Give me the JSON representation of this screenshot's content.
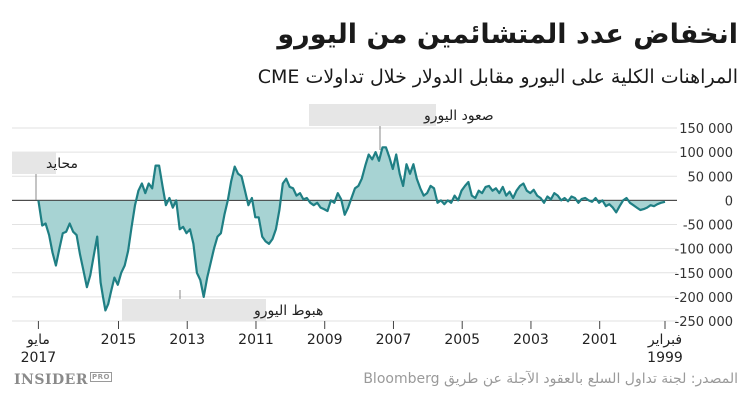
{
  "header": {
    "title": "انخفاض عدد المتشائمين من اليورو",
    "subtitle": "المراهنات الكلية على اليورو مقابل الدولار خلال تداولات CME"
  },
  "footer": {
    "logo_text": "INSIDER",
    "logo_badge": "PRO",
    "source": "المصدر: لجنة تداول السلع بالعقود الآجلة عن طريق Bloomberg"
  },
  "colors": {
    "line": "#1f7f84",
    "fill": "#a7d3d3",
    "grid": "#e2e2e2",
    "label_bg": "#e6e6e6"
  },
  "chart_data": {
    "type": "area",
    "x_direction": "right-to-left",
    "xlim": [
      1999.1,
      2017.4
    ],
    "ylim": [
      -250000,
      150000
    ],
    "y_ticks": [
      150000,
      100000,
      50000,
      0,
      -50000,
      -100000,
      -150000,
      -200000,
      -250000
    ],
    "y_tick_labels": [
      "150 000",
      "100 000",
      "50 000",
      "0",
      "-50 000",
      "-100 000",
      "-150 000",
      "-200 000",
      "-250 000"
    ],
    "x_ticks": [
      {
        "x": 2017.33,
        "label": "مايو",
        "label2": "2017"
      },
      {
        "x": 2015,
        "label": "2015"
      },
      {
        "x": 2013,
        "label": "2013"
      },
      {
        "x": 2011,
        "label": "2011"
      },
      {
        "x": 2009,
        "label": "2009"
      },
      {
        "x": 2007,
        "label": "2007"
      },
      {
        "x": 2005,
        "label": "2005"
      },
      {
        "x": 2003,
        "label": "2003"
      },
      {
        "x": 2001,
        "label": "2001"
      },
      {
        "x": 1999.1,
        "label": "فبراير",
        "label2": "1999"
      }
    ],
    "series": [
      {
        "points": [
          [
            2017.33,
            0
          ],
          [
            2017.22,
            -52000
          ],
          [
            2017.12,
            -48000
          ],
          [
            2017.02,
            -72000
          ],
          [
            2016.92,
            -108000
          ],
          [
            2016.82,
            -135000
          ],
          [
            2016.72,
            -100000
          ],
          [
            2016.62,
            -68000
          ],
          [
            2016.52,
            -65000
          ],
          [
            2016.42,
            -48000
          ],
          [
            2016.32,
            -65000
          ],
          [
            2016.22,
            -72000
          ],
          [
            2016.12,
            -112000
          ],
          [
            2016.02,
            -145000
          ],
          [
            2015.92,
            -180000
          ],
          [
            2015.82,
            -155000
          ],
          [
            2015.72,
            -115000
          ],
          [
            2015.62,
            -75000
          ],
          [
            2015.52,
            -170000
          ],
          [
            2015.45,
            -200000
          ],
          [
            2015.38,
            -228000
          ],
          [
            2015.3,
            -215000
          ],
          [
            2015.22,
            -190000
          ],
          [
            2015.12,
            -160000
          ],
          [
            2015.02,
            -175000
          ],
          [
            2014.92,
            -150000
          ],
          [
            2014.82,
            -135000
          ],
          [
            2014.72,
            -105000
          ],
          [
            2014.62,
            -55000
          ],
          [
            2014.52,
            -10000
          ],
          [
            2014.42,
            20000
          ],
          [
            2014.32,
            35000
          ],
          [
            2014.22,
            15000
          ],
          [
            2014.12,
            35000
          ],
          [
            2014.02,
            25000
          ],
          [
            2013.92,
            72000
          ],
          [
            2013.82,
            72000
          ],
          [
            2013.72,
            30000
          ],
          [
            2013.62,
            -10000
          ],
          [
            2013.52,
            5000
          ],
          [
            2013.42,
            -15000
          ],
          [
            2013.32,
            0
          ],
          [
            2013.22,
            -60000
          ],
          [
            2013.12,
            -55000
          ],
          [
            2013.02,
            -68000
          ],
          [
            2012.92,
            -60000
          ],
          [
            2012.82,
            -90000
          ],
          [
            2012.72,
            -150000
          ],
          [
            2012.62,
            -165000
          ],
          [
            2012.52,
            -200000
          ],
          [
            2012.42,
            -160000
          ],
          [
            2012.32,
            -130000
          ],
          [
            2012.22,
            -100000
          ],
          [
            2012.12,
            -75000
          ],
          [
            2012.02,
            -68000
          ],
          [
            2011.92,
            -30000
          ],
          [
            2011.82,
            0
          ],
          [
            2011.72,
            40000
          ],
          [
            2011.62,
            70000
          ],
          [
            2011.52,
            55000
          ],
          [
            2011.42,
            50000
          ],
          [
            2011.32,
            20000
          ],
          [
            2011.22,
            -10000
          ],
          [
            2011.12,
            5000
          ],
          [
            2011.02,
            -35000
          ],
          [
            2010.92,
            -35000
          ],
          [
            2010.82,
            -75000
          ],
          [
            2010.72,
            -85000
          ],
          [
            2010.62,
            -90000
          ],
          [
            2010.52,
            -80000
          ],
          [
            2010.42,
            -60000
          ],
          [
            2010.32,
            -20000
          ],
          [
            2010.22,
            35000
          ],
          [
            2010.12,
            45000
          ],
          [
            2010.02,
            28000
          ],
          [
            2009.92,
            25000
          ],
          [
            2009.82,
            10000
          ],
          [
            2009.72,
            15000
          ],
          [
            2009.62,
            2000
          ],
          [
            2009.52,
            5000
          ],
          [
            2009.42,
            -5000
          ],
          [
            2009.32,
            -10000
          ],
          [
            2009.22,
            -5000
          ],
          [
            2009.12,
            -15000
          ],
          [
            2009.02,
            -18000
          ],
          [
            2008.92,
            -22000
          ],
          [
            2008.82,
            0
          ],
          [
            2008.72,
            -5000
          ],
          [
            2008.62,
            15000
          ],
          [
            2008.52,
            2000
          ],
          [
            2008.42,
            -30000
          ],
          [
            2008.32,
            -15000
          ],
          [
            2008.22,
            5000
          ],
          [
            2008.12,
            25000
          ],
          [
            2008.02,
            30000
          ],
          [
            2007.92,
            45000
          ],
          [
            2007.82,
            72000
          ],
          [
            2007.72,
            95000
          ],
          [
            2007.62,
            85000
          ],
          [
            2007.52,
            100000
          ],
          [
            2007.42,
            82000
          ],
          [
            2007.32,
            110000
          ],
          [
            2007.22,
            110000
          ],
          [
            2007.12,
            90000
          ],
          [
            2007.02,
            65000
          ],
          [
            2006.92,
            95000
          ],
          [
            2006.82,
            55000
          ],
          [
            2006.72,
            30000
          ],
          [
            2006.62,
            75000
          ],
          [
            2006.52,
            55000
          ],
          [
            2006.42,
            75000
          ],
          [
            2006.32,
            45000
          ],
          [
            2006.22,
            25000
          ],
          [
            2006.12,
            10000
          ],
          [
            2006.02,
            15000
          ],
          [
            2005.92,
            30000
          ],
          [
            2005.82,
            25000
          ],
          [
            2005.72,
            -5000
          ],
          [
            2005.62,
            0
          ],
          [
            2005.52,
            -8000
          ],
          [
            2005.42,
            0
          ],
          [
            2005.32,
            -5000
          ],
          [
            2005.22,
            10000
          ],
          [
            2005.12,
            0
          ],
          [
            2005.02,
            20000
          ],
          [
            2004.92,
            30000
          ],
          [
            2004.82,
            38000
          ],
          [
            2004.72,
            10000
          ],
          [
            2004.62,
            5000
          ],
          [
            2004.52,
            20000
          ],
          [
            2004.42,
            15000
          ],
          [
            2004.32,
            28000
          ],
          [
            2004.22,
            30000
          ],
          [
            2004.12,
            20000
          ],
          [
            2004.02,
            25000
          ],
          [
            2003.92,
            15000
          ],
          [
            2003.82,
            28000
          ],
          [
            2003.72,
            10000
          ],
          [
            2003.62,
            18000
          ],
          [
            2003.52,
            5000
          ],
          [
            2003.42,
            20000
          ],
          [
            2003.32,
            30000
          ],
          [
            2003.22,
            35000
          ],
          [
            2003.12,
            20000
          ],
          [
            2003.02,
            15000
          ],
          [
            2002.92,
            22000
          ],
          [
            2002.82,
            10000
          ],
          [
            2002.72,
            5000
          ],
          [
            2002.62,
            -5000
          ],
          [
            2002.52,
            8000
          ],
          [
            2002.42,
            2000
          ],
          [
            2002.32,
            15000
          ],
          [
            2002.22,
            10000
          ],
          [
            2002.12,
            0
          ],
          [
            2002.02,
            5000
          ],
          [
            2001.92,
            -2000
          ],
          [
            2001.82,
            8000
          ],
          [
            2001.72,
            5000
          ],
          [
            2001.62,
            -5000
          ],
          [
            2001.52,
            3000
          ],
          [
            2001.42,
            5000
          ],
          [
            2001.32,
            0
          ],
          [
            2001.22,
            -3000
          ],
          [
            2001.12,
            5000
          ],
          [
            2001.02,
            -5000
          ],
          [
            2000.92,
            0
          ],
          [
            2000.82,
            -12000
          ],
          [
            2000.72,
            -8000
          ],
          [
            2000.62,
            -15000
          ],
          [
            2000.52,
            -25000
          ],
          [
            2000.42,
            -12000
          ],
          [
            2000.32,
            0
          ],
          [
            2000.22,
            5000
          ],
          [
            2000.12,
            -5000
          ],
          [
            2000.02,
            -10000
          ],
          [
            1999.92,
            -15000
          ],
          [
            1999.82,
            -20000
          ],
          [
            1999.72,
            -18000
          ],
          [
            1999.62,
            -15000
          ],
          [
            1999.52,
            -10000
          ],
          [
            1999.42,
            -12000
          ],
          [
            1999.32,
            -8000
          ],
          [
            1999.22,
            -5000
          ],
          [
            1999.1,
            -3000
          ]
        ]
      }
    ],
    "annotations": [
      {
        "text": "محايد"
      },
      {
        "text": "صعود اليورو"
      },
      {
        "text": "هبوط اليورو"
      }
    ],
    "grid": "horizontal",
    "legend": "none"
  }
}
